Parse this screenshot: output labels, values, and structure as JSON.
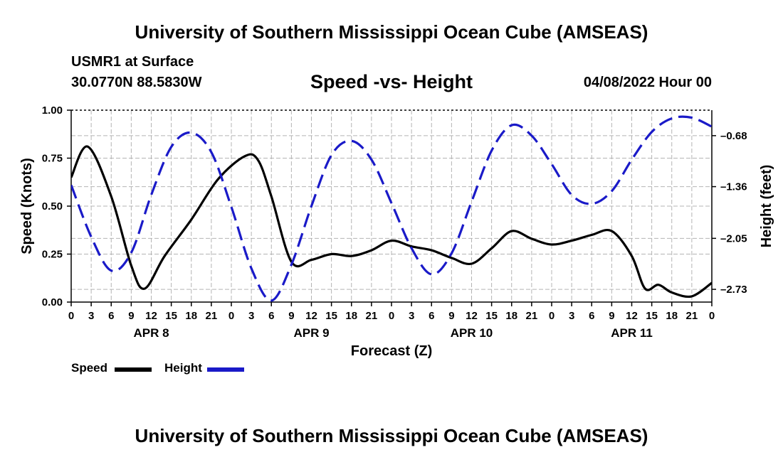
{
  "header": {
    "title": "University of Southern Mississippi Ocean Cube (AMSEAS)",
    "station": "USMR1 at Surface",
    "coords": "30.0770N  88.5830W",
    "subtitle": "Speed -vs- Height",
    "datetime": "04/08/2022 Hour 00"
  },
  "footer": {
    "title": "University of Southern Mississippi Ocean Cube (AMSEAS)"
  },
  "legend": {
    "speed": "Speed",
    "height": "Height"
  },
  "colors": {
    "speed": "#000000",
    "height": "#1a1ac8",
    "grid": "#b4b4b4"
  },
  "chart_data": {
    "type": "line",
    "title": "Speed -vs- Height",
    "xlabel": "Forecast (Z)",
    "ylabel": "Speed (Knots)",
    "y2label": "Height (feet)",
    "x_ticks": [
      "0",
      "3",
      "6",
      "9",
      "12",
      "15",
      "18",
      "21",
      "0",
      "3",
      "6",
      "9",
      "12",
      "15",
      "18",
      "21",
      "0",
      "3",
      "6",
      "9",
      "12",
      "15",
      "18",
      "21",
      "0",
      "3",
      "6",
      "9",
      "12",
      "15",
      "18",
      "21",
      "0"
    ],
    "date_labels": [
      {
        "label": "APR 8",
        "hour": 12
      },
      {
        "label": "APR 9",
        "hour": 36
      },
      {
        "label": "APR 10",
        "hour": 60
      },
      {
        "label": "APR 11",
        "hour": 84
      }
    ],
    "ylim": [
      0,
      1
    ],
    "y_ticks": [
      "0.00",
      "0.25",
      "0.50",
      "0.75",
      "1.00"
    ],
    "y2lim": [
      -2.9,
      -0.34
    ],
    "y2_ticks": [
      "-0.68",
      "-1.36",
      "-2.05",
      "-2.73"
    ],
    "y2_tick_values": [
      -0.68,
      -1.36,
      -2.05,
      -2.73
    ],
    "series": [
      {
        "name": "Speed",
        "axis": "left",
        "style": "solid",
        "x": [
          0,
          2.5,
          6,
          9,
          11,
          14,
          18,
          22,
          26,
          28,
          30,
          33,
          36,
          39,
          42,
          45,
          48,
          51,
          54,
          57,
          60,
          63,
          66,
          69,
          72,
          75,
          78,
          81,
          84,
          86,
          88,
          90,
          93,
          96
        ],
        "values": [
          0.65,
          0.81,
          0.55,
          0.19,
          0.07,
          0.24,
          0.43,
          0.64,
          0.76,
          0.74,
          0.55,
          0.21,
          0.22,
          0.25,
          0.24,
          0.27,
          0.32,
          0.29,
          0.27,
          0.23,
          0.2,
          0.28,
          0.37,
          0.33,
          0.3,
          0.32,
          0.35,
          0.37,
          0.24,
          0.07,
          0.09,
          0.05,
          0.03,
          0.1
        ]
      },
      {
        "name": "Height",
        "axis": "right",
        "style": "dashed",
        "x": [
          0,
          3,
          6,
          9,
          12,
          15,
          18,
          21,
          24,
          27,
          30,
          33,
          36,
          39,
          42,
          45,
          48,
          51,
          54,
          57,
          60,
          63,
          66,
          69,
          72,
          75,
          78,
          81,
          84,
          87,
          90,
          93,
          96
        ],
        "values": [
          -1.34,
          -2.03,
          -2.48,
          -2.24,
          -1.47,
          -0.83,
          -0.64,
          -0.9,
          -1.63,
          -2.45,
          -2.88,
          -2.4,
          -1.62,
          -0.94,
          -0.75,
          -1.0,
          -1.58,
          -2.18,
          -2.53,
          -2.25,
          -1.56,
          -0.88,
          -0.54,
          -0.68,
          -1.06,
          -1.47,
          -1.59,
          -1.42,
          -1.0,
          -0.63,
          -0.45,
          -0.44,
          -0.56
        ]
      }
    ]
  }
}
